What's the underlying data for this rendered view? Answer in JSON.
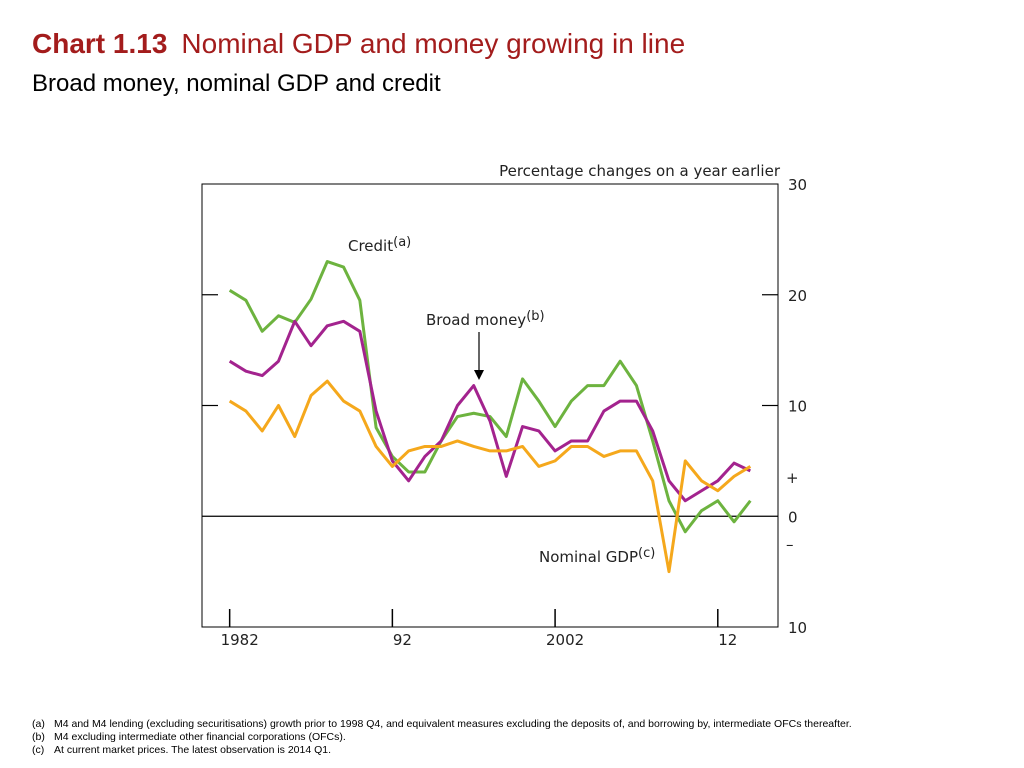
{
  "chart_data": {
    "type": "line",
    "chart_number": "Chart 1.13",
    "title": "Nominal GDP and money growing in line",
    "subtitle": "Broad money, nominal GDP and credit",
    "y_axis_label": "Percentage changes on a year earlier",
    "sign_labels": [
      "+",
      "–"
    ],
    "x": [
      1982,
      1983,
      1984,
      1985,
      1986,
      1987,
      1988,
      1989,
      1990,
      1991,
      1992,
      1993,
      1994,
      1995,
      1996,
      1997,
      1998,
      1999,
      2000,
      2001,
      2002,
      2003,
      2004,
      2005,
      2006,
      2007,
      2008,
      2009,
      2010,
      2011,
      2012,
      2013,
      2014
    ],
    "xlim": [
      1980.3,
      2015.7
    ],
    "xticks": [
      1982,
      {
        "value": 1992,
        "label": "92"
      },
      2002,
      {
        "value": 2012,
        "label": "12"
      }
    ],
    "ylim": [
      -10,
      30
    ],
    "yticks": [
      {
        "value": -10,
        "label": "10"
      },
      0,
      10,
      20,
      30
    ],
    "series": [
      {
        "name": "Credit",
        "note": "(a)",
        "color": "#6db33f",
        "values": [
          20.4,
          19.5,
          16.7,
          18.1,
          17.5,
          19.6,
          23,
          22.5,
          19.5,
          8,
          5.4,
          4,
          4,
          6.8,
          9,
          9.3,
          9,
          7.2,
          12.4,
          10.4,
          8.1,
          10.4,
          11.8,
          11.8,
          14,
          11.8,
          6.8,
          1.4,
          -1.4,
          0.5,
          1.4,
          -0.5,
          1.4
        ]
      },
      {
        "name": "Broad money",
        "note": "(b)",
        "color": "#a3238e",
        "values": [
          14,
          13.1,
          12.7,
          14,
          17.6,
          15.4,
          17.2,
          17.6,
          16.7,
          9.5,
          5,
          3.2,
          5.4,
          6.8,
          10,
          11.8,
          8.6,
          3.6,
          8.1,
          7.7,
          5.9,
          6.8,
          6.8,
          9.5,
          10.4,
          10.4,
          7.7,
          3.2,
          1.4,
          2.3,
          3.2,
          4.8,
          4.1
        ]
      },
      {
        "name": "Nominal GDP",
        "note": "(c)",
        "color": "#f5a81c",
        "values": [
          10.4,
          9.5,
          7.7,
          10,
          7.2,
          10.9,
          12.2,
          10.4,
          9.5,
          6.3,
          4.5,
          5.9,
          6.3,
          6.3,
          6.8,
          6.3,
          5.9,
          5.9,
          6.3,
          4.5,
          5,
          6.3,
          6.3,
          5.4,
          5.9,
          5.9,
          3.2,
          -5,
          5,
          3.2,
          2.3,
          3.6,
          4.5
        ]
      }
    ],
    "footnotes": [
      {
        "key": "(a)",
        "text": "M4 and M4 lending (excluding securitisations) growth prior to 1998 Q4, and equivalent measures excluding the deposits of, and borrowing by, intermediate OFCs thereafter."
      },
      {
        "key": "(b)",
        "text": "M4 excluding intermediate other financial corporations (OFCs)."
      },
      {
        "key": "(c)",
        "text": "At current market prices. The latest observation is 2014 Q1."
      }
    ]
  }
}
